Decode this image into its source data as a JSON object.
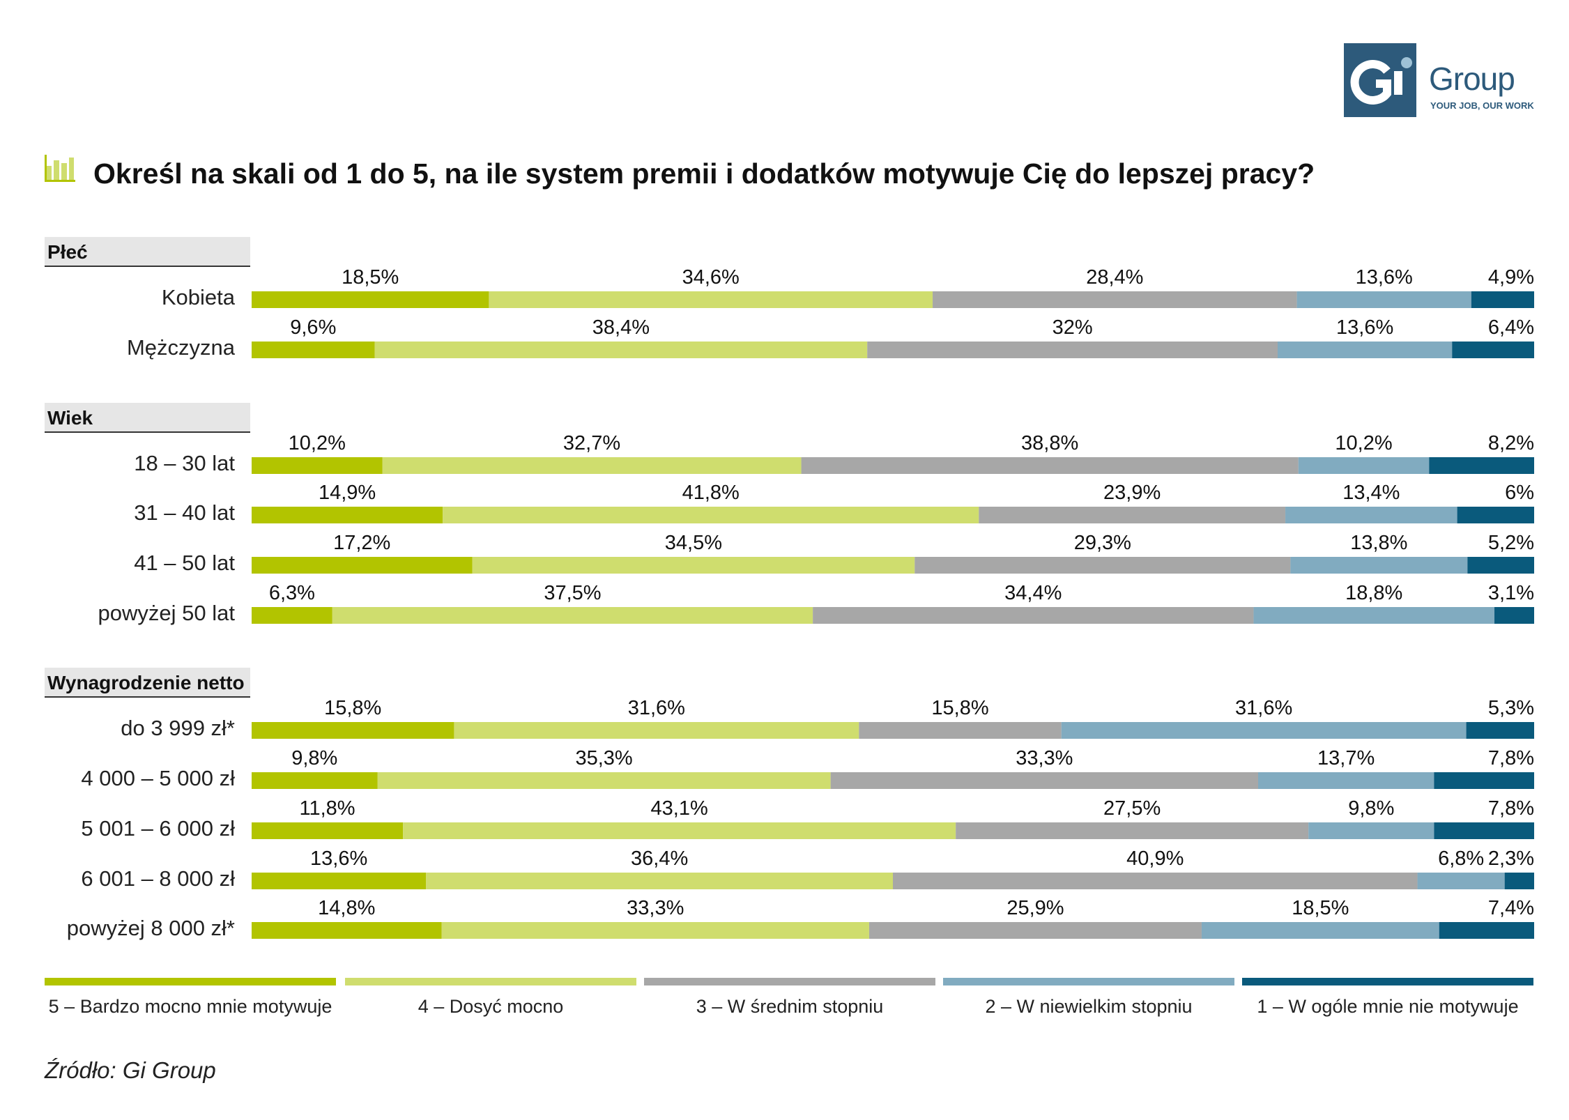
{
  "logo": {
    "text": "Group",
    "mark": "Gi",
    "tagline": "YOUR JOB, OUR WORK"
  },
  "title": "Określ na skali od 1 do 5, na ile system premii i dodatków motywuje Cię do lepszej pracy?",
  "title_icon": "bar-chart-icon",
  "source": "Źródło: Gi Group",
  "colors": [
    "#b2c400",
    "#cfdd6e",
    "#a7a7a7",
    "#81abc0",
    "#0a5a7c"
  ],
  "chart_data": {
    "type": "bar",
    "stacked": true,
    "orientation": "horizontal",
    "unit": "%",
    "series_names": [
      "5 – Bardzo mocno mnie motywuje",
      "4 – Dosyć mocno",
      "3 – W średnim stopniu",
      "2 – W niewielkim stopniu",
      "1 – W ogóle mnie nie motywuje"
    ],
    "groups": [
      {
        "name": "Płeć",
        "rows": [
          {
            "label": "Kobieta",
            "values": [
              18.5,
              34.6,
              28.4,
              13.6,
              4.9
            ],
            "value_labels": [
              "18,5%",
              "34,6%",
              "28,4%",
              "13,6%",
              "4,9%"
            ]
          },
          {
            "label": "Mężczyzna",
            "values": [
              9.6,
              38.4,
              32,
              13.6,
              6.4
            ],
            "value_labels": [
              "9,6%",
              "38,4%",
              "32%",
              "13,6%",
              "6,4%"
            ]
          }
        ]
      },
      {
        "name": "Wiek",
        "rows": [
          {
            "label": "18 – 30 lat",
            "values": [
              10.2,
              32.7,
              38.8,
              10.2,
              8.2
            ],
            "value_labels": [
              "10,2%",
              "32,7%",
              "38,8%",
              "10,2%",
              "8,2%"
            ]
          },
          {
            "label": "31 – 40 lat",
            "values": [
              14.9,
              41.8,
              23.9,
              13.4,
              6
            ],
            "value_labels": [
              "14,9%",
              "41,8%",
              "23,9%",
              "13,4%",
              "6%"
            ]
          },
          {
            "label": "41 – 50 lat",
            "values": [
              17.2,
              34.5,
              29.3,
              13.8,
              5.2
            ],
            "value_labels": [
              "17,2%",
              "34,5%",
              "29,3%",
              "13,8%",
              "5,2%"
            ]
          },
          {
            "label": "powyżej 50 lat",
            "values": [
              6.3,
              37.5,
              34.4,
              18.8,
              3.1
            ],
            "value_labels": [
              "6,3%",
              "37,5%",
              "34,4%",
              "18,8%",
              "3,1%"
            ]
          }
        ]
      },
      {
        "name": "Wynagrodzenie netto",
        "rows": [
          {
            "label": "do 3 999 zł*",
            "values": [
              15.8,
              31.6,
              15.8,
              31.6,
              5.3
            ],
            "value_labels": [
              "15,8%",
              "31,6%",
              "15,8%",
              "31,6%",
              "5,3%"
            ]
          },
          {
            "label": "4 000 – 5 000 zł",
            "values": [
              9.8,
              35.3,
              33.3,
              13.7,
              7.8
            ],
            "value_labels": [
              "9,8%",
              "35,3%",
              "33,3%",
              "13,7%",
              "7,8%"
            ]
          },
          {
            "label": "5 001 – 6 000 zł",
            "values": [
              11.8,
              43.1,
              27.5,
              9.8,
              7.8
            ],
            "value_labels": [
              "11,8%",
              "43,1%",
              "27,5%",
              "9,8%",
              "7,8%"
            ]
          },
          {
            "label": "6 001 – 8 000 zł",
            "values": [
              13.6,
              36.4,
              40.9,
              6.8,
              2.3
            ],
            "value_labels": [
              "13,6%",
              "36,4%",
              "40,9%",
              "6,8%",
              "2,3%"
            ]
          },
          {
            "label": "powyżej 8 000 zł*",
            "values": [
              14.8,
              33.3,
              25.9,
              18.5,
              7.4
            ],
            "value_labels": [
              "14,8%",
              "33,3%",
              "25,9%",
              "18,5%",
              "7,4%"
            ]
          }
        ]
      }
    ],
    "legend_position": "bottom",
    "grid": false
  }
}
